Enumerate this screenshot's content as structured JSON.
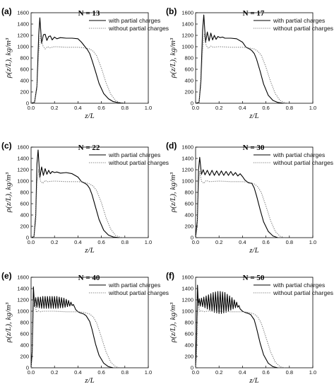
{
  "figure": {
    "x_axis_label": "z/L",
    "y_axis_label": "ρ(z/L), kg/m³"
  },
  "chart_data": [
    {
      "type": "line",
      "panel_label": "(a)",
      "title": "N = 13",
      "xlabel": "z/L",
      "ylabel": "ρ(z/L), kg/m³",
      "xlim": [
        0.0,
        1.0
      ],
      "ylim": [
        0,
        1600
      ],
      "xticks": [
        "0.0",
        "0.2",
        "0.4",
        "0.6",
        "0.8",
        "1.0"
      ],
      "yticks": [
        "0",
        "200",
        "400",
        "600",
        "800",
        "1000",
        "1200",
        "1400",
        "1600"
      ],
      "legend": [
        "with partial charges",
        "without partial charges"
      ],
      "legend_position": "top-right",
      "series": [
        {
          "name": "with partial charges",
          "style": "solid",
          "color": "#000000",
          "x": [
            0,
            0.03,
            0.05,
            0.065,
            0.075,
            0.09,
            0.105,
            0.12,
            0.135,
            0.15,
            0.165,
            0.18,
            0.2,
            0.22,
            0.25,
            0.3,
            0.35,
            0.4,
            0.43,
            0.46,
            0.48,
            0.5,
            0.52,
            0.55,
            0.58,
            0.62,
            0.66,
            0.7,
            0.75,
            0.8
          ],
          "y": [
            0,
            20,
            300,
            1200,
            1510,
            1060,
            1210,
            1220,
            1110,
            1180,
            1190,
            1120,
            1170,
            1140,
            1160,
            1150,
            1150,
            1140,
            1080,
            1000,
            950,
            880,
            760,
            560,
            350,
            170,
            80,
            30,
            8,
            0
          ]
        },
        {
          "name": "without partial charges",
          "style": "dotted",
          "color": "#777777",
          "x": [
            0,
            0.03,
            0.05,
            0.065,
            0.08,
            0.1,
            0.12,
            0.14,
            0.16,
            0.2,
            0.3,
            0.4,
            0.45,
            0.5,
            0.53,
            0.56,
            0.6,
            0.64,
            0.68,
            0.72,
            0.76,
            0.8
          ],
          "y": [
            0,
            20,
            250,
            900,
            1200,
            1020,
            960,
            1000,
            980,
            1000,
            990,
            990,
            980,
            960,
            920,
            840,
            620,
            360,
            160,
            50,
            10,
            0
          ]
        }
      ]
    },
    {
      "type": "line",
      "panel_label": "(b)",
      "title": "N = 17",
      "xlabel": "z/L",
      "ylabel": "ρ(z/L), kg/m³",
      "xlim": [
        0.0,
        1.0
      ],
      "ylim": [
        0,
        1600
      ],
      "xticks": [
        "0.0",
        "0.2",
        "0.4",
        "0.6",
        "0.8",
        "1.0"
      ],
      "yticks": [
        "0",
        "200",
        "400",
        "600",
        "800",
        "1000",
        "1200",
        "1400",
        "1600"
      ],
      "legend": [
        "with partial charges",
        "without partial charges"
      ],
      "legend_position": "top-right",
      "series": [
        {
          "name": "with partial charges",
          "style": "solid",
          "color": "#000000",
          "x": [
            0,
            0.03,
            0.045,
            0.06,
            0.07,
            0.085,
            0.1,
            0.115,
            0.13,
            0.145,
            0.16,
            0.175,
            0.19,
            0.21,
            0.23,
            0.25,
            0.3,
            0.35,
            0.4,
            0.43,
            0.46,
            0.48,
            0.5,
            0.52,
            0.55,
            0.58,
            0.62,
            0.66,
            0.7,
            0.75
          ],
          "y": [
            0,
            20,
            400,
            1300,
            1560,
            1080,
            1260,
            1100,
            1240,
            1120,
            1200,
            1130,
            1180,
            1160,
            1170,
            1150,
            1150,
            1140,
            1080,
            990,
            960,
            930,
            880,
            780,
            570,
            340,
            140,
            50,
            15,
            0
          ]
        },
        {
          "name": "without partial charges",
          "style": "dotted",
          "color": "#777777",
          "x": [
            0,
            0.03,
            0.045,
            0.06,
            0.075,
            0.09,
            0.11,
            0.13,
            0.15,
            0.2,
            0.3,
            0.4,
            0.45,
            0.5,
            0.53,
            0.56,
            0.6,
            0.64,
            0.68,
            0.72,
            0.76,
            0.8
          ],
          "y": [
            0,
            20,
            300,
            950,
            1230,
            1020,
            970,
            1010,
            990,
            1000,
            990,
            990,
            980,
            960,
            920,
            850,
            640,
            380,
            170,
            50,
            10,
            0
          ]
        }
      ]
    },
    {
      "type": "line",
      "panel_label": "(c)",
      "title": "N = 22",
      "xlabel": "z/L",
      "ylabel": "ρ(z/L), kg/m³",
      "xlim": [
        0.0,
        1.0
      ],
      "ylim": [
        0,
        1600
      ],
      "xticks": [
        "0.0",
        "0.2",
        "0.4",
        "0.6",
        "0.8",
        "1.0"
      ],
      "yticks": [
        "0",
        "200",
        "400",
        "600",
        "800",
        "1000",
        "1200",
        "1400",
        "1600"
      ],
      "legend": [
        "with partial charges",
        "without partial charges"
      ],
      "legend_position": "top-right",
      "series": [
        {
          "name": "with partial charges",
          "style": "solid",
          "color": "#000000",
          "x": [
            0,
            0.025,
            0.04,
            0.05,
            0.06,
            0.075,
            0.09,
            0.105,
            0.12,
            0.135,
            0.15,
            0.165,
            0.18,
            0.2,
            0.22,
            0.25,
            0.3,
            0.35,
            0.4,
            0.43,
            0.46,
            0.48,
            0.5,
            0.52,
            0.55,
            0.58,
            0.62,
            0.66,
            0.7,
            0.75
          ],
          "y": [
            0,
            20,
            400,
            1300,
            1550,
            1060,
            1250,
            1100,
            1220,
            1120,
            1190,
            1130,
            1170,
            1150,
            1160,
            1140,
            1150,
            1130,
            1070,
            990,
            960,
            930,
            870,
            760,
            540,
            320,
            130,
            45,
            12,
            0
          ]
        },
        {
          "name": "without partial charges",
          "style": "dotted",
          "color": "#777777",
          "x": [
            0,
            0.025,
            0.04,
            0.05,
            0.065,
            0.08,
            0.1,
            0.12,
            0.14,
            0.2,
            0.3,
            0.4,
            0.45,
            0.5,
            0.53,
            0.56,
            0.6,
            0.64,
            0.68,
            0.72,
            0.76,
            0.8
          ],
          "y": [
            0,
            20,
            300,
            950,
            1200,
            1000,
            960,
            1010,
            990,
            1000,
            990,
            990,
            980,
            950,
            910,
            830,
            620,
            350,
            150,
            40,
            8,
            0
          ]
        }
      ]
    },
    {
      "type": "line",
      "panel_label": "(d)",
      "title": "N = 30",
      "xlabel": "z/L",
      "ylabel": "ρ(z/L), kg/m³",
      "xlim": [
        0.0,
        1.0
      ],
      "ylim": [
        0,
        1600
      ],
      "xticks": [
        "0.0",
        "0.2",
        "0.4",
        "0.6",
        "0.8",
        "1.0"
      ],
      "yticks": [
        "0",
        "200",
        "400",
        "600",
        "800",
        "1000",
        "1200",
        "1400",
        "1600"
      ],
      "legend": [
        "with partial charges",
        "without partial charges"
      ],
      "legend_position": "top-right",
      "series": [
        {
          "name": "with partial charges",
          "style": "solid",
          "color": "#000000",
          "x": [
            0,
            0.015,
            0.025,
            0.035,
            0.05,
            0.065,
            0.08,
            0.1,
            0.12,
            0.14,
            0.16,
            0.18,
            0.2,
            0.22,
            0.24,
            0.26,
            0.28,
            0.3,
            0.32,
            0.34,
            0.36,
            0.38,
            0.4,
            0.42,
            0.45,
            0.48,
            0.5,
            0.52,
            0.55,
            0.58,
            0.62,
            0.66,
            0.7
          ],
          "y": [
            0,
            300,
            1200,
            1420,
            1120,
            1200,
            1110,
            1190,
            1100,
            1190,
            1100,
            1180,
            1100,
            1180,
            1100,
            1170,
            1100,
            1170,
            1100,
            1150,
            1090,
            1130,
            1080,
            1020,
            970,
            960,
            880,
            740,
            500,
            280,
            110,
            30,
            0
          ]
        },
        {
          "name": "without partial charges",
          "style": "dotted",
          "color": "#777777",
          "x": [
            0,
            0.015,
            0.025,
            0.035,
            0.05,
            0.07,
            0.09,
            0.12,
            0.2,
            0.3,
            0.4,
            0.45,
            0.5,
            0.53,
            0.56,
            0.6,
            0.64,
            0.68,
            0.72,
            0.76
          ],
          "y": [
            0,
            200,
            900,
            1180,
            1000,
            960,
            1010,
            990,
            1000,
            990,
            990,
            980,
            950,
            900,
            800,
            560,
            300,
            110,
            25,
            0
          ]
        }
      ]
    },
    {
      "type": "line",
      "panel_label": "(e)",
      "title": "N = 40",
      "xlabel": "z/L",
      "ylabel": "ρ(z/L), kg/m³",
      "xlim": [
        0.0,
        1.0
      ],
      "ylim": [
        0,
        1600
      ],
      "xticks": [
        "0.0",
        "0.2",
        "0.4",
        "0.6",
        "0.8",
        "1.0"
      ],
      "yticks": [
        "0",
        "200",
        "400",
        "600",
        "800",
        "1000",
        "1200",
        "1400",
        "1600"
      ],
      "legend": [
        "with partial charges",
        "without partial charges"
      ],
      "legend_position": "top-right",
      "series": [
        {
          "name": "with partial charges",
          "style": "solid",
          "color": "#000000",
          "x": [
            0,
            0.01,
            0.02,
            0.03,
            0.04,
            0.05,
            0.06,
            0.07,
            0.08,
            0.09,
            0.1,
            0.11,
            0.12,
            0.13,
            0.14,
            0.15,
            0.16,
            0.17,
            0.18,
            0.19,
            0.2,
            0.21,
            0.22,
            0.23,
            0.24,
            0.25,
            0.26,
            0.27,
            0.28,
            0.29,
            0.3,
            0.31,
            0.32,
            0.33,
            0.34,
            0.35,
            0.36,
            0.37,
            0.38,
            0.4,
            0.42,
            0.45,
            0.47,
            0.5,
            0.52,
            0.55,
            0.58,
            0.62,
            0.66,
            0.7
          ],
          "y": [
            0,
            300,
            1430,
            1080,
            1240,
            1070,
            1250,
            1060,
            1250,
            1050,
            1260,
            1050,
            1260,
            1050,
            1260,
            1050,
            1260,
            1050,
            1260,
            1050,
            1260,
            1050,
            1260,
            1050,
            1250,
            1060,
            1240,
            1060,
            1230,
            1070,
            1210,
            1080,
            1190,
            1090,
            1160,
            1100,
            1120,
            1080,
            1030,
            990,
            970,
            950,
            920,
            820,
            680,
            420,
            220,
            80,
            20,
            0
          ]
        },
        {
          "name": "without partial charges",
          "style": "dotted",
          "color": "#777777",
          "x": [
            0,
            0.01,
            0.02,
            0.03,
            0.045,
            0.06,
            0.08,
            0.1,
            0.2,
            0.3,
            0.4,
            0.45,
            0.5,
            0.53,
            0.56,
            0.6,
            0.64,
            0.68,
            0.72,
            0.76
          ],
          "y": [
            0,
            200,
            1000,
            1200,
            980,
            1010,
            990,
            1000,
            1000,
            990,
            990,
            980,
            950,
            900,
            790,
            540,
            280,
            100,
            20,
            0
          ]
        }
      ]
    },
    {
      "type": "line",
      "panel_label": "(f)",
      "title": "N = 50",
      "xlabel": "z/L",
      "ylabel": "ρ(z/L), kg/m³",
      "xlim": [
        0.0,
        1.0
      ],
      "ylim": [
        0,
        1600
      ],
      "xticks": [
        "0.0",
        "0.2",
        "0.4",
        "0.6",
        "0.8",
        "1.0"
      ],
      "yticks": [
        "0",
        "200",
        "400",
        "600",
        "800",
        "1000",
        "1200",
        "1400",
        "1600"
      ],
      "legend": [
        "with partial charges",
        "without partial charges"
      ],
      "legend_position": "top-right",
      "series": [
        {
          "name": "with partial charges",
          "style": "solid",
          "color": "#000000",
          "x": [
            0,
            0.008,
            0.016,
            0.024,
            0.032,
            0.04,
            0.05,
            0.06,
            0.07,
            0.08,
            0.09,
            0.1,
            0.11,
            0.12,
            0.13,
            0.14,
            0.15,
            0.16,
            0.17,
            0.18,
            0.19,
            0.2,
            0.21,
            0.22,
            0.23,
            0.24,
            0.25,
            0.26,
            0.27,
            0.28,
            0.29,
            0.3,
            0.31,
            0.32,
            0.33,
            0.34,
            0.35,
            0.36,
            0.37,
            0.38,
            0.4,
            0.42,
            0.45,
            0.47,
            0.5,
            0.52,
            0.55,
            0.58,
            0.62,
            0.66,
            0.7
          ],
          "y": [
            0,
            500,
            1460,
            1100,
            1220,
            1090,
            1230,
            1080,
            1250,
            1060,
            1270,
            1040,
            1290,
            1020,
            1310,
            1000,
            1330,
            980,
            1340,
            970,
            1350,
            960,
            1350,
            960,
            1340,
            970,
            1330,
            980,
            1300,
            1000,
            1270,
            1020,
            1240,
            1040,
            1200,
            1060,
            1160,
            1070,
            1100,
            1040,
            1000,
            980,
            960,
            940,
            850,
            700,
            440,
            230,
            80,
            20,
            0
          ]
        },
        {
          "name": "without partial charges",
          "style": "dotted",
          "color": "#777777",
          "x": [
            0,
            0.008,
            0.016,
            0.024,
            0.035,
            0.05,
            0.07,
            0.1,
            0.2,
            0.3,
            0.4,
            0.45,
            0.5,
            0.53,
            0.56,
            0.6,
            0.64,
            0.68,
            0.72,
            0.76
          ],
          "y": [
            0,
            200,
            900,
            1150,
            990,
            1010,
            990,
            1000,
            1000,
            990,
            990,
            980,
            950,
            900,
            790,
            540,
            280,
            100,
            20,
            0
          ]
        }
      ]
    }
  ]
}
